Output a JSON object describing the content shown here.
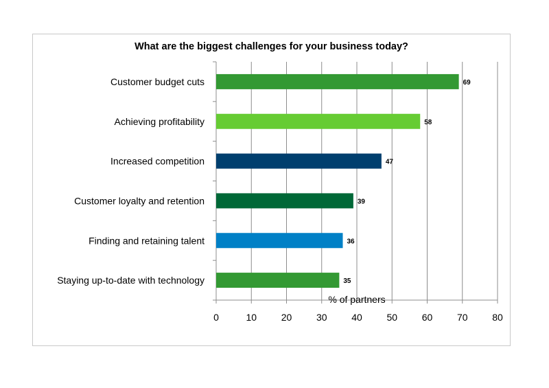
{
  "chart_data": {
    "type": "bar",
    "orientation": "horizontal",
    "title": "What are the biggest challenges for your business today?",
    "xlabel": "% of partners",
    "ylabel": "",
    "xlim": [
      0,
      80
    ],
    "xticks": [
      0,
      10,
      20,
      30,
      40,
      50,
      60,
      70,
      80
    ],
    "grid": "vertical",
    "categories": [
      "Customer budget cuts",
      "Achieving profitability",
      "Increased competition",
      "Customer loyalty and retention",
      "Finding and retaining talent",
      "Staying up-to-date with technology"
    ],
    "values": [
      69,
      58,
      47,
      39,
      36,
      35
    ],
    "colors": [
      "#339933",
      "#66cc33",
      "#003f6e",
      "#006837",
      "#0080c6",
      "#339933"
    ]
  }
}
